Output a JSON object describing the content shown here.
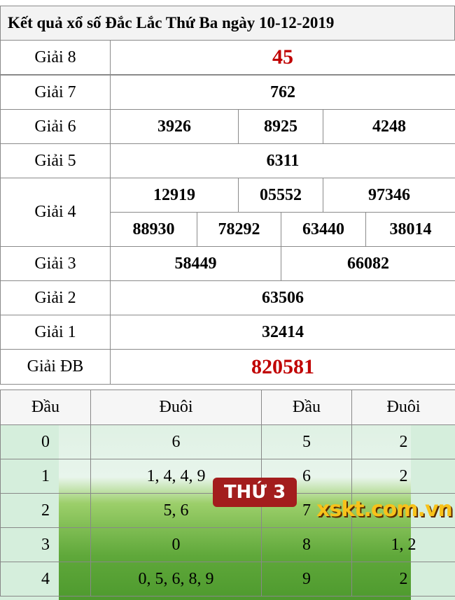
{
  "title": "Kết quả xổ số Đắc Lắc Thứ Ba ngày 10-12-2019",
  "prizes": {
    "g8": {
      "label": "Giải 8",
      "values": [
        "45"
      ]
    },
    "g7": {
      "label": "Giải 7",
      "values": [
        "762"
      ]
    },
    "g6": {
      "label": "Giải 6",
      "values": [
        "3926",
        "8925",
        "4248"
      ]
    },
    "g5": {
      "label": "Giải 5",
      "values": [
        "6311"
      ]
    },
    "g4": {
      "label": "Giải 4",
      "values": [
        "12919",
        "05552",
        "97346",
        "88930",
        "78292",
        "63440",
        "38014"
      ]
    },
    "g3": {
      "label": "Giải 3",
      "values": [
        "58449",
        "66082"
      ]
    },
    "g2": {
      "label": "Giải 2",
      "values": [
        "63506"
      ]
    },
    "g1": {
      "label": "Giải 1",
      "values": [
        "32414"
      ]
    },
    "gdb": {
      "label": "Giải ĐB",
      "values": [
        "820581"
      ]
    }
  },
  "loto": {
    "headers": [
      "Đầu",
      "Đuôi",
      "Đầu",
      "Đuôi"
    ],
    "rows": [
      [
        "0",
        "6",
        "5",
        "2"
      ],
      [
        "1",
        "1, 4, 4, 9",
        "6",
        "2"
      ],
      [
        "2",
        "5, 6",
        "7",
        ""
      ],
      [
        "3",
        "0",
        "8",
        "1, 2"
      ],
      [
        "4",
        "0, 5, 6, 8, 9",
        "9",
        "2"
      ]
    ]
  },
  "banner": {
    "badge": "THỨ 3",
    "logo": "xskt.com.vn"
  },
  "colors": {
    "special": "#c00000",
    "badge": "#a31d1d"
  }
}
